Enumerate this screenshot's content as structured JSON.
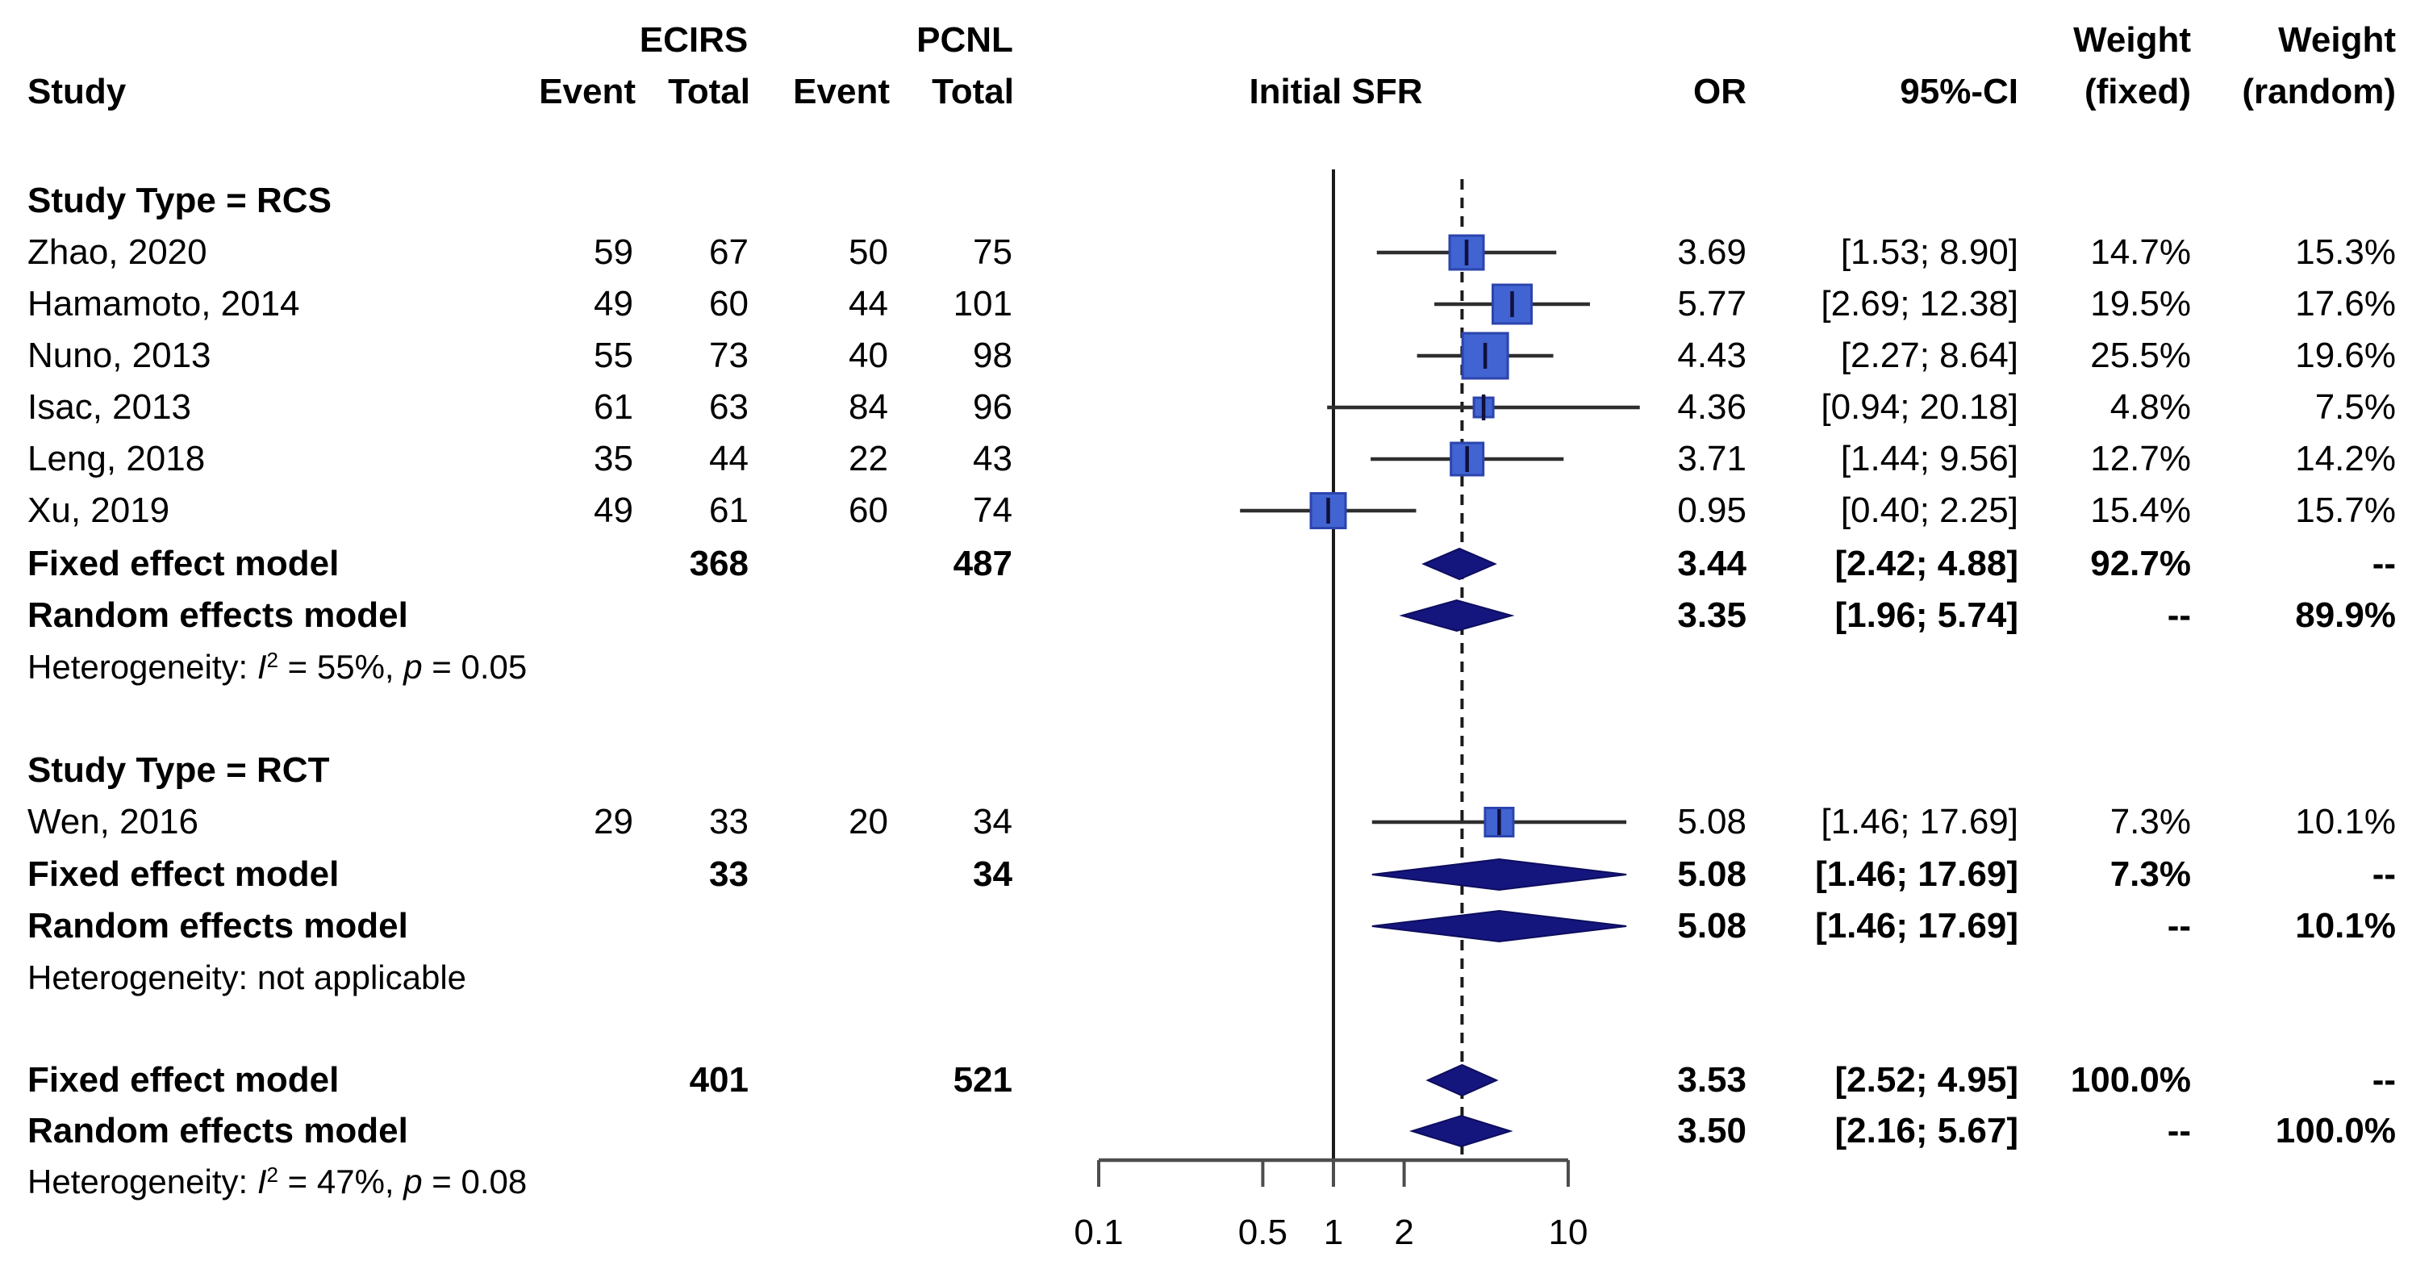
{
  "header": {
    "study": "Study",
    "ecirs": "ECIRS",
    "pcnl": "PCNL",
    "event": "Event",
    "total": "Total",
    "plot_title": "Initial SFR",
    "or": "OR",
    "ci": "95%-CI",
    "weight": "Weight",
    "fixed": "(fixed)",
    "random": "(random)"
  },
  "colors": {
    "square_fill": "#4164d2",
    "square_border": "#2c44ad",
    "diamond_fill": "#15157e",
    "diamond_border": "#0d0d5e",
    "ci_line": "#2e2e2e",
    "marker_tick": "#10103c",
    "axis": "#4d4d4d",
    "ref_line": "#1a1a1a",
    "dashed_line": "#1a1a1a",
    "text": "#000000"
  },
  "chart_data": {
    "type": "forest",
    "title": "Initial SFR",
    "effect_measure": "OR",
    "scale": "log10",
    "x_ticks": [
      0.1,
      0.5,
      1,
      2,
      10
    ],
    "x_tick_labels": [
      "0.1",
      "0.5",
      "1",
      "2",
      "10"
    ],
    "x_range": [
      0.1,
      10
    ],
    "ref_line": 1,
    "summary_line": 3.53,
    "groups": [
      {
        "label": "Study Type = RCS",
        "studies": [
          {
            "name": "Zhao, 2020",
            "ecirs_event": "59",
            "ecirs_total": "67",
            "pcnl_event": "50",
            "pcnl_total": "75",
            "or": 3.69,
            "lcl": 1.53,
            "ucl": 8.9,
            "or_text": "3.69",
            "ci_text": "[1.53; 8.90]",
            "weight_fixed": "14.7%",
            "weight_random": "15.3%",
            "square": 42
          },
          {
            "name": "Hamamoto, 2014",
            "ecirs_event": "49",
            "ecirs_total": "60",
            "pcnl_event": "44",
            "pcnl_total": "101",
            "or": 5.77,
            "lcl": 2.69,
            "ucl": 12.38,
            "or_text": "5.77",
            "ci_text": "[2.69; 12.38]",
            "weight_fixed": "19.5%",
            "weight_random": "17.6%",
            "square": 48
          },
          {
            "name": "Nuno, 2013",
            "ecirs_event": "55",
            "ecirs_total": "73",
            "pcnl_event": "40",
            "pcnl_total": "98",
            "or": 4.43,
            "lcl": 2.27,
            "ucl": 8.64,
            "or_text": "4.43",
            "ci_text": "[2.27; 8.64]",
            "weight_fixed": "25.5%",
            "weight_random": "19.6%",
            "square": 56
          },
          {
            "name": "Isac, 2013",
            "ecirs_event": "61",
            "ecirs_total": "63",
            "pcnl_event": "84",
            "pcnl_total": "96",
            "or": 4.36,
            "lcl": 0.94,
            "ucl": 20.18,
            "or_text": "4.36",
            "ci_text": "[0.94; 20.18]",
            "weight_fixed": "4.8%",
            "weight_random": "7.5%",
            "square": 24
          },
          {
            "name": "Leng, 2018",
            "ecirs_event": "35",
            "ecirs_total": "44",
            "pcnl_event": "22",
            "pcnl_total": "43",
            "or": 3.71,
            "lcl": 1.44,
            "ucl": 9.56,
            "or_text": "3.71",
            "ci_text": "[1.44; 9.56]",
            "weight_fixed": "12.7%",
            "weight_random": "14.2%",
            "square": 40
          },
          {
            "name": "Xu, 2019",
            "ecirs_event": "49",
            "ecirs_total": "61",
            "pcnl_event": "60",
            "pcnl_total": "74",
            "or": 0.95,
            "lcl": 0.4,
            "ucl": 2.25,
            "or_text": "0.95",
            "ci_text": "[0.40; 2.25]",
            "weight_fixed": "15.4%",
            "weight_random": "15.7%",
            "square": 43
          }
        ],
        "fixed": {
          "label": "Fixed effect model",
          "ecirs_total": "368",
          "pcnl_total": "487",
          "or": 3.44,
          "lcl": 2.42,
          "ucl": 4.88,
          "or_text": "3.44",
          "ci_text": "[2.42; 4.88]",
          "weight_fixed": "92.7%",
          "weight_random": "--"
        },
        "random": {
          "label": "Random effects model",
          "or": 3.35,
          "lcl": 1.96,
          "ucl": 5.74,
          "or_text": "3.35",
          "ci_text": "[1.96; 5.74]",
          "weight_fixed": "--",
          "weight_random": "89.9%"
        },
        "heterogeneity": {
          "prefix": "Heterogeneity: ",
          "i_label": "I",
          "i_sup": "2",
          "mid": " = 55%, ",
          "p_label": "p",
          "tail": " = 0.05"
        }
      },
      {
        "label": "Study Type = RCT",
        "studies": [
          {
            "name": "Wen, 2016",
            "ecirs_event": "29",
            "ecirs_total": "33",
            "pcnl_event": "20",
            "pcnl_total": "34",
            "or": 5.08,
            "lcl": 1.46,
            "ucl": 17.69,
            "or_text": "5.08",
            "ci_text": "[1.46; 17.69]",
            "weight_fixed": "7.3%",
            "weight_random": "10.1%",
            "square": 35
          }
        ],
        "fixed": {
          "label": "Fixed effect model",
          "ecirs_total": "33",
          "pcnl_total": "34",
          "or": 5.08,
          "lcl": 1.46,
          "ucl": 17.69,
          "or_text": "5.08",
          "ci_text": "[1.46; 17.69]",
          "weight_fixed": "7.3%",
          "weight_random": "--"
        },
        "random": {
          "label": "Random effects model",
          "or": 5.08,
          "lcl": 1.46,
          "ucl": 17.69,
          "or_text": "5.08",
          "ci_text": "[1.46; 17.69]",
          "weight_fixed": "--",
          "weight_random": "10.1%"
        },
        "heterogeneity": {
          "prefix": "Heterogeneity: not applicable"
        }
      }
    ],
    "overall": {
      "fixed": {
        "label": "Fixed effect model",
        "ecirs_total": "401",
        "pcnl_total": "521",
        "or": 3.53,
        "lcl": 2.52,
        "ucl": 4.95,
        "or_text": "3.53",
        "ci_text": "[2.52; 4.95]",
        "weight_fixed": "100.0%",
        "weight_random": "--"
      },
      "random": {
        "label": "Random effects model",
        "or": 3.5,
        "lcl": 2.16,
        "ucl": 5.67,
        "or_text": "3.50",
        "ci_text": "[2.16; 5.67]",
        "weight_fixed": "--",
        "weight_random": "100.0%"
      },
      "heterogeneity": {
        "prefix": "Heterogeneity: ",
        "i_label": "I",
        "i_sup": "2",
        "mid": " = 47%, ",
        "p_label": "p",
        "tail": " = 0.08"
      }
    }
  }
}
